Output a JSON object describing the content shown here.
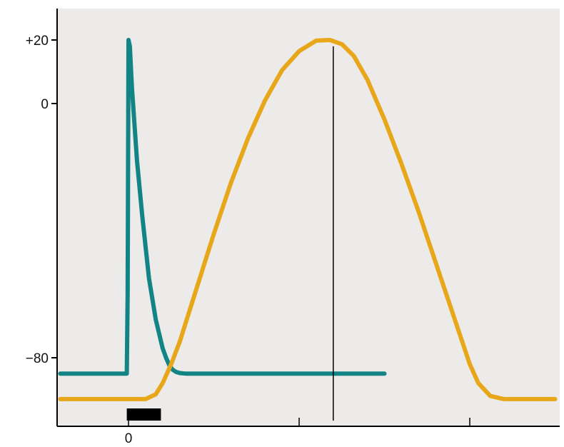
{
  "chart_data": {
    "type": "line",
    "title": "",
    "xlabel": "",
    "ylabel": "",
    "x_tick_labels": [
      {
        "value": 0,
        "label": "0"
      }
    ],
    "x_minor_ticks": [
      0,
      100,
      200
    ],
    "y_tick_labels": [
      {
        "value": 20,
        "label": "+20"
      },
      {
        "value": 0,
        "label": "0"
      },
      {
        "value": -80,
        "label": "−80"
      }
    ],
    "xlim": [
      -40,
      250
    ],
    "ylim": [
      -96,
      29
    ],
    "grid": false,
    "background_color": "#ecebe9",
    "stimulus_marker": {
      "x_start": -1,
      "x_end": 19,
      "color": "#000000"
    },
    "reference_line": {
      "x": 120,
      "y_top": 18,
      "color": "#000000"
    },
    "series": [
      {
        "color": "#138486",
        "x": [
          -40,
          -1,
          -0.5,
          0,
          0.8,
          2,
          5,
          8,
          12,
          16,
          20,
          22,
          24,
          26,
          28,
          30,
          34,
          40,
          60,
          100,
          150
        ],
        "y": [
          -85,
          -85,
          -60,
          20,
          18,
          5,
          -18,
          -35,
          -55,
          -68,
          -77,
          -80,
          -82.5,
          -83.8,
          -84.5,
          -84.8,
          -85,
          -85,
          -85,
          -85,
          -85
        ]
      },
      {
        "color": "#e8a71a",
        "x": [
          -40,
          10,
          16,
          20,
          25,
          30,
          40,
          50,
          60,
          70,
          80,
          90,
          100,
          110,
          118,
          125,
          132,
          140,
          150,
          160,
          170,
          180,
          190,
          200,
          205,
          212,
          220,
          250
        ],
        "y": [
          -93,
          -93,
          -91.5,
          -88,
          -82,
          -75,
          -58,
          -41,
          -25,
          -11,
          1,
          10.5,
          16.5,
          19.8,
          20,
          18.7,
          15,
          7.5,
          -5,
          -19,
          -34,
          -50,
          -66,
          -82,
          -88,
          -92,
          -93,
          -93
        ]
      }
    ]
  }
}
